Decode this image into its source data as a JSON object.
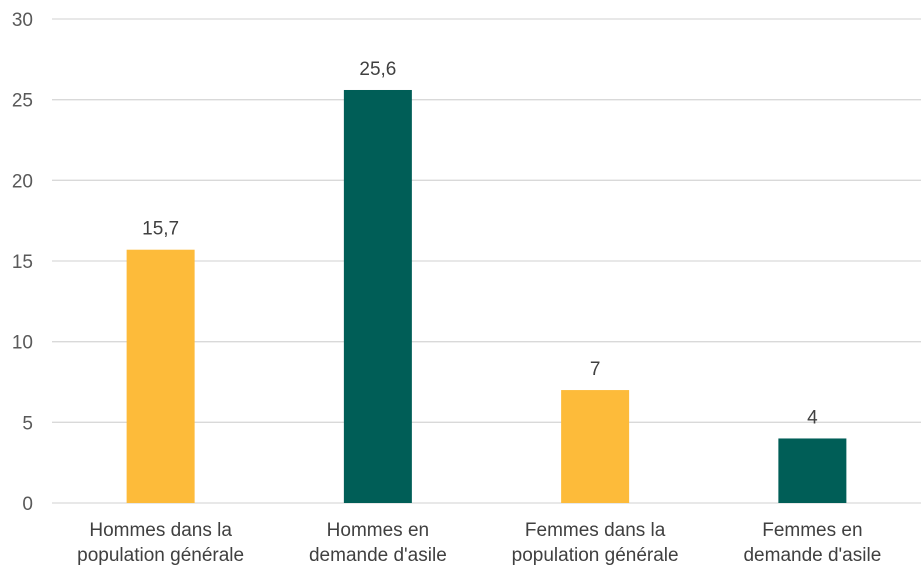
{
  "chart_data": {
    "type": "bar",
    "categories": [
      [
        "Hommes dans la",
        "population générale"
      ],
      [
        "Hommes en",
        "demande d'asile"
      ],
      [
        "Femmes dans la",
        "population générale"
      ],
      [
        "Femmes en",
        "demande d'asile"
      ]
    ],
    "values": [
      15.7,
      25.6,
      7,
      4
    ],
    "data_labels": [
      "15,7",
      "25,6",
      "7",
      "4"
    ],
    "bar_colors": [
      "#FDBB3A",
      "#005E57",
      "#FDBB3A",
      "#005E57"
    ],
    "ylim": [
      0,
      30
    ],
    "yticks": [
      0,
      5,
      10,
      15,
      20,
      25,
      30
    ],
    "ytick_labels": [
      "0",
      "5",
      "10",
      "15",
      "20",
      "25",
      "30"
    ],
    "grid": true,
    "legend": false,
    "title": "",
    "xlabel": "",
    "ylabel": ""
  }
}
